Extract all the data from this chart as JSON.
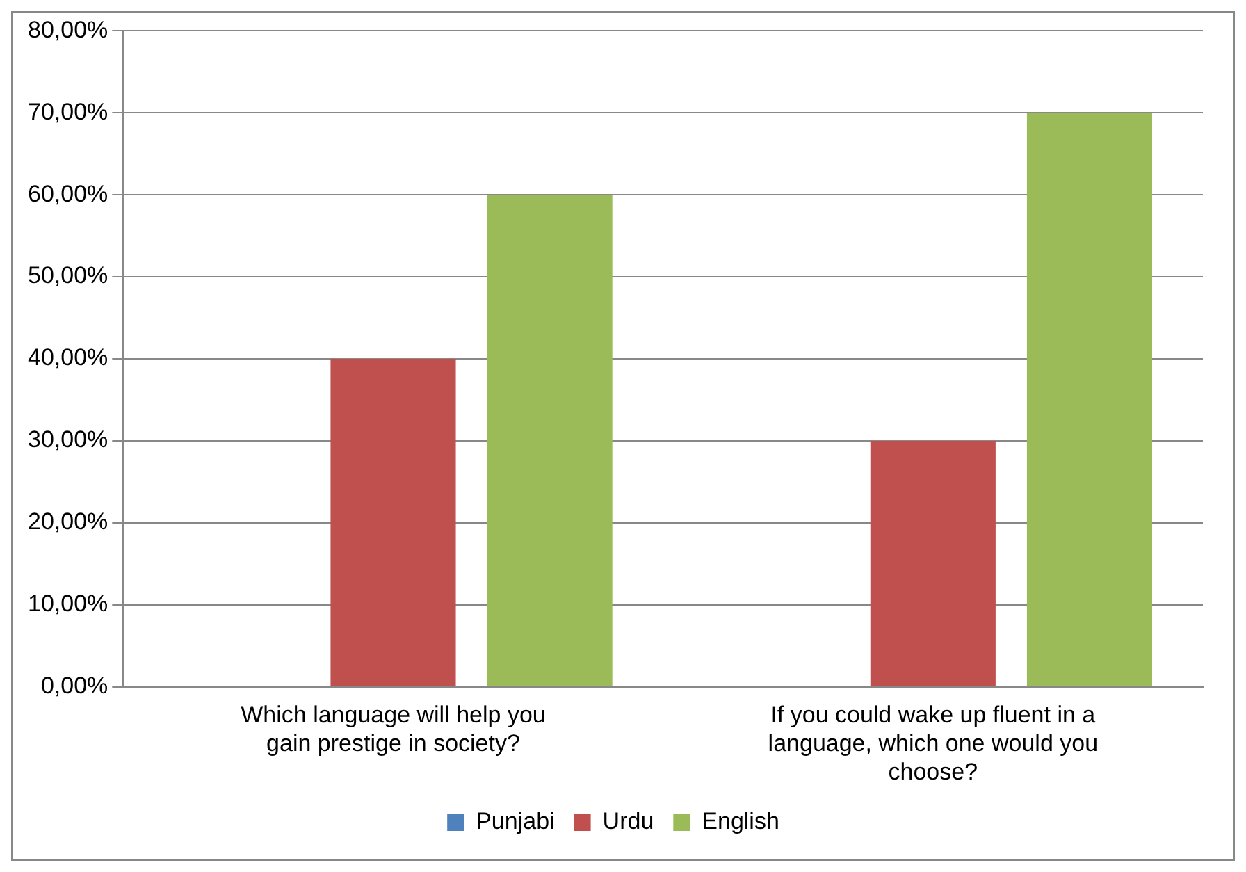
{
  "chart_data": {
    "type": "bar",
    "categories": [
      "Which language will help you gain prestige in society?",
      "If you could wake up fluent in a language, which one would you choose?"
    ],
    "series": [
      {
        "name": "Punjabi",
        "color": "#4f81bd",
        "values": [
          0,
          0
        ]
      },
      {
        "name": "Urdu",
        "color": "#c0504d",
        "values": [
          40,
          30
        ]
      },
      {
        "name": "English",
        "color": "#9bbb59",
        "values": [
          60,
          70
        ]
      }
    ],
    "ylim": [
      0,
      80
    ],
    "yticks": [
      {
        "value": 0,
        "label": "0,00%"
      },
      {
        "value": 10,
        "label": "10,00%"
      },
      {
        "value": 20,
        "label": "20,00%"
      },
      {
        "value": 30,
        "label": "30,00%"
      },
      {
        "value": 40,
        "label": "40,00%"
      },
      {
        "value": 50,
        "label": "50,00%"
      },
      {
        "value": 60,
        "label": "60,00%"
      },
      {
        "value": 70,
        "label": "70,00%"
      },
      {
        "value": 80,
        "label": "80,00%"
      }
    ],
    "grid": "y",
    "legend": "bottom"
  }
}
